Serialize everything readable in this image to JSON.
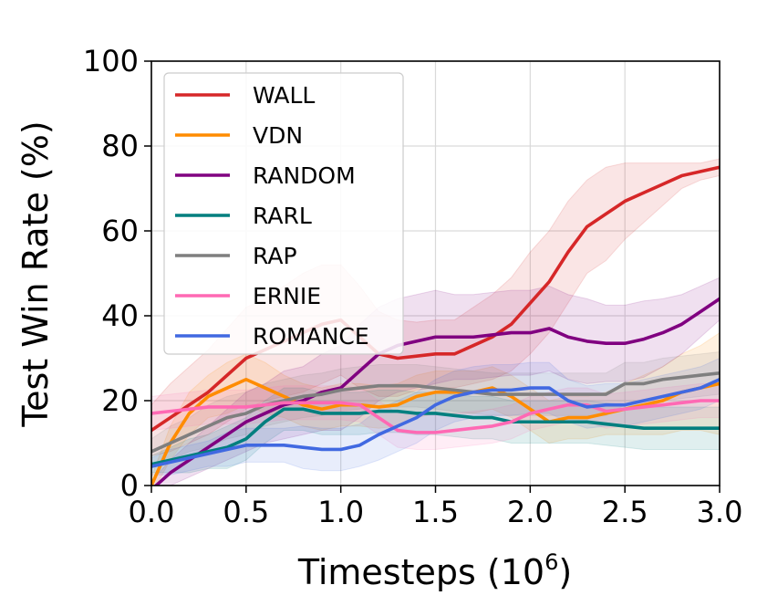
{
  "chart_data": {
    "type": "line",
    "xlabel": "Timesteps (10",
    "xlabel_exp": "6",
    "xlabel_suffix": ")",
    "ylabel": "Test Win Rate (%)",
    "xlim": [
      0,
      3
    ],
    "ylim": [
      0,
      100
    ],
    "xticks": [
      0,
      0.5,
      1,
      1.5,
      2,
      2.5,
      3
    ],
    "xtick_labels": [
      "0.0",
      "0.5",
      "1.0",
      "1.5",
      "2.0",
      "2.5",
      "3.0"
    ],
    "yticks": [
      0,
      20,
      40,
      60,
      80,
      100
    ],
    "ytick_labels": [
      "0",
      "20",
      "40",
      "60",
      "80",
      "100"
    ],
    "grid": true,
    "legend_position": "upper-left",
    "shaded_bands": true,
    "x": [
      0,
      0.1,
      0.2,
      0.3,
      0.4,
      0.5,
      0.6,
      0.7,
      0.8,
      0.9,
      1.0,
      1.1,
      1.2,
      1.3,
      1.4,
      1.5,
      1.6,
      1.7,
      1.8,
      1.9,
      2.0,
      2.1,
      2.2,
      2.3,
      2.4,
      2.5,
      2.6,
      2.7,
      2.8,
      2.9,
      3.0
    ],
    "series": [
      {
        "name": "WALL",
        "color": "#d62728",
        "values": [
          13,
          16,
          19,
          22,
          26,
          30,
          32,
          34,
          36,
          38,
          39,
          35,
          31,
          30,
          30.5,
          31,
          31,
          33,
          35,
          38,
          43,
          48,
          55,
          61,
          64,
          67,
          69,
          71,
          73,
          74,
          75
        ],
        "band": [
          6,
          8,
          9,
          10,
          11,
          12,
          12,
          13,
          14,
          14,
          13,
          12,
          10,
          9,
          8,
          8,
          8,
          9,
          10,
          11,
          12,
          12,
          12,
          11,
          11,
          9,
          7,
          5,
          3,
          2,
          2
        ]
      },
      {
        "name": "VDN",
        "color": "#ff8c00",
        "values": [
          0,
          10,
          17,
          21,
          23,
          25,
          23,
          21,
          19,
          18,
          19,
          19,
          18.5,
          19,
          21,
          22,
          22,
          22,
          23,
          21,
          18,
          15,
          16,
          16,
          17,
          18,
          19,
          20,
          22,
          23,
          24
        ],
        "band": [
          2,
          4,
          5,
          5,
          6,
          6,
          6,
          5,
          5,
          5,
          5,
          5,
          5,
          5,
          5,
          5,
          5,
          5,
          5,
          5,
          5,
          5,
          5,
          5,
          5,
          6,
          7,
          8,
          9,
          10,
          12
        ]
      },
      {
        "name": "RANDOM",
        "color": "#800080",
        "values": [
          -1,
          3,
          6,
          9,
          12,
          15,
          17,
          19,
          20,
          22,
          23,
          27,
          31,
          33,
          34,
          35,
          35,
          35,
          35.5,
          36,
          36,
          37,
          35,
          34,
          33.5,
          33.5,
          34.5,
          36,
          38,
          41,
          44
        ],
        "band": [
          2,
          3,
          4,
          5,
          6,
          7,
          7,
          8,
          8,
          9,
          10,
          11,
          11,
          11,
          11,
          11,
          10,
          10,
          10,
          10,
          10,
          10,
          10,
          10,
          9,
          9,
          9,
          8,
          7,
          6,
          5
        ]
      },
      {
        "name": "RARL",
        "color": "#007f7f",
        "values": [
          5,
          6,
          7,
          8,
          9,
          11,
          15,
          18,
          18,
          17,
          17,
          17,
          17.5,
          17.5,
          17,
          17,
          16.5,
          16,
          16,
          15,
          15,
          15,
          15,
          15,
          14.5,
          14,
          13.5,
          13.5,
          13.5,
          13.5,
          13.5
        ],
        "band": [
          2,
          3,
          4,
          4,
          5,
          5,
          5,
          5,
          5,
          5,
          5,
          5,
          5,
          5,
          5,
          5,
          5,
          5,
          5,
          5,
          5,
          5,
          5,
          5,
          5,
          5,
          5,
          5,
          5,
          5,
          5
        ]
      },
      {
        "name": "RAP",
        "color": "#7f7f7f",
        "values": [
          8,
          10,
          12,
          14,
          16,
          17,
          19,
          20,
          21,
          21.5,
          22.5,
          23,
          23.5,
          23.5,
          23.5,
          23,
          22.5,
          22,
          21.5,
          21.5,
          21.5,
          21.5,
          21.5,
          21.5,
          21.5,
          24,
          24,
          25,
          25.5,
          26,
          26.5
        ],
        "band": [
          3,
          4,
          4,
          5,
          5,
          5,
          5,
          5,
          5,
          5,
          5,
          5,
          5,
          5,
          5,
          5,
          5,
          5,
          5,
          5,
          5,
          5,
          5,
          5,
          5,
          5,
          5,
          5,
          5,
          5,
          5
        ]
      },
      {
        "name": "ERNIE",
        "color": "#ff69b4",
        "values": [
          17,
          17.5,
          18,
          18.5,
          18.5,
          18.5,
          19,
          19.5,
          19.5,
          19.5,
          19.5,
          19,
          16,
          13,
          12.5,
          12.5,
          13,
          13.5,
          14,
          15,
          17,
          18,
          19,
          19,
          17.5,
          18,
          18.5,
          19,
          19.5,
          20,
          20
        ],
        "band": [
          4,
          4,
          4,
          4,
          4,
          4,
          4,
          4,
          4,
          4,
          4,
          4,
          4,
          4,
          4,
          4,
          4,
          4,
          4,
          4,
          4,
          4,
          4,
          4,
          4,
          4,
          4,
          4,
          4,
          4,
          4
        ]
      },
      {
        "name": "ROMANCE",
        "color": "#4169e1",
        "values": [
          4.5,
          5.5,
          6.5,
          7.5,
          8.5,
          9.5,
          9.5,
          9.5,
          9,
          8.5,
          8.5,
          9.5,
          12,
          14,
          16,
          19,
          21,
          22,
          22.5,
          22.5,
          23,
          23,
          20,
          18.5,
          19,
          19,
          20,
          21,
          22,
          23,
          25
        ],
        "band": [
          2,
          3,
          3,
          3,
          4,
          4,
          4,
          4,
          5,
          5,
          5,
          5,
          6,
          6,
          6,
          6,
          6,
          6,
          6,
          6,
          6,
          6,
          5,
          5,
          5,
          5,
          5,
          5,
          5,
          5,
          5
        ]
      }
    ]
  }
}
